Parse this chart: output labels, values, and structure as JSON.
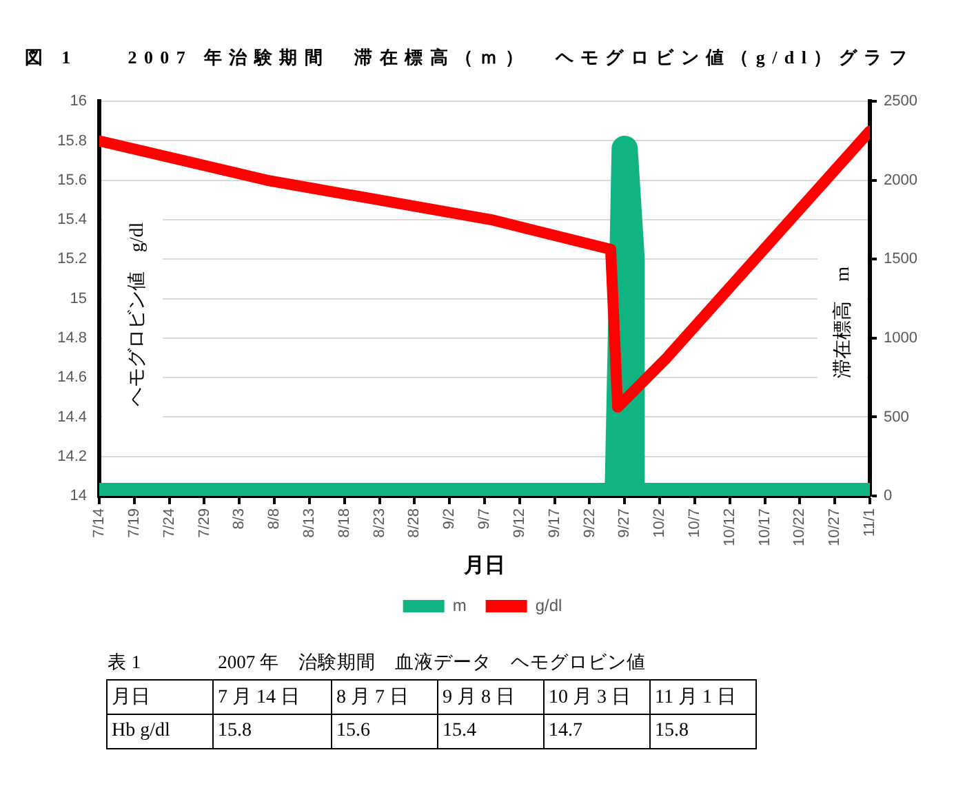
{
  "chart_data": [
    {
      "type": "line",
      "title": "図 1　　2007 年治験期間　滞在標高（ｍ）　ヘモグロビン値（g/dl）グラフ",
      "xlabel": "月日",
      "ylabel": "ヘモグロビン値　g/dl",
      "y2label": "滞在標高　m",
      "xlim": [
        "2007-07-14",
        "2007-11-01"
      ],
      "xticks": [
        {
          "value": "2007-07-14",
          "label": "7/14"
        },
        {
          "value": "2007-07-19",
          "label": "7/19"
        },
        {
          "value": "2007-07-24",
          "label": "7/24"
        },
        {
          "value": "2007-07-29",
          "label": "7/29"
        },
        {
          "value": "2007-08-03",
          "label": "8/3"
        },
        {
          "value": "2007-08-08",
          "label": "8/8"
        },
        {
          "value": "2007-08-13",
          "label": "8/13"
        },
        {
          "value": "2007-08-18",
          "label": "8/18"
        },
        {
          "value": "2007-08-23",
          "label": "8/23"
        },
        {
          "value": "2007-08-28",
          "label": "8/28"
        },
        {
          "value": "2007-09-02",
          "label": "9/2"
        },
        {
          "value": "2007-09-07",
          "label": "9/7"
        },
        {
          "value": "2007-09-12",
          "label": "9/12"
        },
        {
          "value": "2007-09-17",
          "label": "9/17"
        },
        {
          "value": "2007-09-22",
          "label": "9/22"
        },
        {
          "value": "2007-09-27",
          "label": "9/27"
        },
        {
          "value": "2007-10-02",
          "label": "10/2"
        },
        {
          "value": "2007-10-07",
          "label": "10/7"
        },
        {
          "value": "2007-10-12",
          "label": "10/12"
        },
        {
          "value": "2007-10-17",
          "label": "10/17"
        },
        {
          "value": "2007-10-22",
          "label": "10/22"
        },
        {
          "value": "2007-10-27",
          "label": "10/27"
        },
        {
          "value": "2007-11-01",
          "label": "11/1"
        }
      ],
      "ylim": [
        14,
        16
      ],
      "yticks": [
        14,
        14.2,
        14.4,
        14.6,
        14.8,
        15,
        15.2,
        15.4,
        15.6,
        15.8,
        16
      ],
      "y2lim": [
        0,
        2500
      ],
      "y2ticks": [
        0,
        500,
        1000,
        1500,
        2000,
        2500
      ],
      "series": [
        {
          "name": "m",
          "color": "#12b383",
          "axis": "y2",
          "x": [
            "2007-07-14",
            "2007-09-26",
            "2007-09-27",
            "2007-09-28",
            "2007-09-28",
            "2007-11-01"
          ],
          "values": [
            0,
            0,
            2200,
            1500,
            0,
            0
          ]
        },
        {
          "name": "g/dl",
          "color": "#ff0000",
          "x": [
            "2007-07-14",
            "2007-08-07",
            "2007-09-08",
            "2007-09-25",
            "2007-09-26",
            "2007-10-03",
            "2007-11-01"
          ],
          "values": [
            15.8,
            15.6,
            15.4,
            15.25,
            14.45,
            14.7,
            15.85
          ]
        }
      ],
      "grid": "y",
      "legend": "bottom"
    },
    {
      "type": "other",
      "title": "表 1　　　　2007 年　治験期間　血液データ　ヘモグロビン値",
      "xlabel": "月日",
      "ylabel": "Hb g/dl",
      "categories": [
        "7 月 14 日",
        "8 月 7 日",
        "9 月 8 日",
        "10 月 3 日",
        "11 月 1 日"
      ],
      "values": [
        15.8,
        15.6,
        15.4,
        14.7,
        15.8
      ],
      "data_labels": true
    }
  ]
}
